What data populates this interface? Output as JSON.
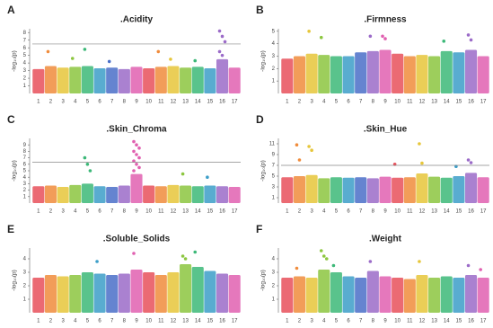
{
  "chromosome_colors": [
    "#e8505b",
    "#f08c3c",
    "#e6c63a",
    "#8cc63f",
    "#3cb878",
    "#3c9ec8",
    "#4a6fc8",
    "#9b6bc8",
    "#e060b0",
    "#e8505b",
    "#f08c3c",
    "#e6c63a",
    "#8cc63f",
    "#3cb878",
    "#3c9ec8",
    "#9b6bc8",
    "#e060b0"
  ],
  "chart_data": [
    {
      "type": "manhattan",
      "panel": "A",
      "title": ".Acidity",
      "ylabel": "-log₁₀(p)",
      "categories": [
        "1",
        "2",
        "3",
        "4",
        "5",
        "6",
        "7",
        "8",
        "9",
        "10",
        "11",
        "12",
        "13",
        "14",
        "15",
        "16",
        "17"
      ],
      "values": [
        3.2,
        3.6,
        3.4,
        3.5,
        3.6,
        3.3,
        3.4,
        3.2,
        3.5,
        3.3,
        3.5,
        3.6,
        3.4,
        3.5,
        3.3,
        4.5,
        3.4
      ],
      "peaks": [
        [],
        [
          5.5
        ],
        [],
        [
          4.6
        ],
        [
          5.8
        ],
        [],
        [
          4.2
        ],
        [],
        [],
        [],
        [
          5.5
        ],
        [
          4.5
        ],
        [],
        [
          4.3
        ],
        [],
        [
          8.2,
          7.5,
          6.8,
          5.5,
          5
        ],
        []
      ],
      "threshold": 6.5,
      "ylim": [
        0,
        8.5
      ],
      "yticks": [
        1,
        2,
        3,
        4,
        5,
        6,
        7,
        8
      ]
    },
    {
      "type": "manhattan",
      "panel": "B",
      "title": ".Firmness",
      "ylabel": "-log₁₀(p)",
      "categories": [
        "1",
        "2",
        "3",
        "4",
        "5",
        "6",
        "7",
        "8",
        "9",
        "10",
        "11",
        "12",
        "13",
        "14",
        "15",
        "16",
        "17"
      ],
      "values": [
        2.8,
        3.0,
        3.2,
        3.1,
        3.0,
        3.0,
        3.3,
        3.4,
        3.5,
        3.2,
        3.0,
        3.1,
        3.0,
        3.4,
        3.3,
        3.5,
        3.0
      ],
      "peaks": [
        [],
        [],
        [
          5
        ],
        [
          4.5
        ],
        [],
        [],
        [],
        [
          4.6
        ],
        [
          4.6,
          4.4
        ],
        [],
        [],
        [],
        [],
        [
          4.2
        ],
        [],
        [
          4.7,
          4.3
        ],
        []
      ],
      "ylim": [
        0,
        5.2
      ],
      "yticks": [
        1,
        2,
        3,
        4,
        5
      ]
    },
    {
      "type": "manhattan",
      "panel": "C",
      "title": ".Skin_Chroma",
      "ylabel": "-log₁₀(p)",
      "categories": [
        "1",
        "2",
        "3",
        "4",
        "5",
        "6",
        "7",
        "8",
        "9",
        "10",
        "11",
        "12",
        "13",
        "14",
        "15",
        "16",
        "17"
      ],
      "values": [
        2.6,
        2.7,
        2.5,
        2.8,
        3.0,
        2.6,
        2.5,
        2.7,
        4.5,
        2.7,
        2.6,
        2.8,
        2.7,
        2.6,
        2.7,
        2.6,
        2.5
      ],
      "peaks": [
        [],
        [],
        [],
        [],
        [
          7,
          6,
          5
        ],
        [],
        [],
        [],
        [
          9.5,
          9,
          8.5,
          8,
          7.5,
          7,
          6.5,
          6,
          5.5,
          5
        ],
        [],
        [],
        [],
        [
          4.5
        ],
        [],
        [
          4
        ],
        [],
        []
      ],
      "threshold": 6.3,
      "ylim": [
        0,
        10
      ],
      "yticks": [
        1,
        2,
        3,
        4,
        5,
        6,
        7,
        8,
        9
      ]
    },
    {
      "type": "manhattan",
      "panel": "D",
      "title": ".Skin_Hue",
      "ylabel": "-log₁₀(p)",
      "categories": [
        "1",
        "2",
        "3",
        "4",
        "5",
        "6",
        "7",
        "8",
        "9",
        "10",
        "11",
        "12",
        "13",
        "14",
        "15",
        "16",
        "17"
      ],
      "values": [
        4.8,
        5.0,
        5.2,
        4.6,
        4.8,
        4.7,
        4.8,
        4.6,
        4.9,
        4.7,
        4.8,
        5.5,
        4.9,
        4.7,
        5.0,
        5.6,
        4.8
      ],
      "peaks": [
        [],
        [
          10.8,
          8
        ],
        [
          10.5,
          9.8
        ],
        [],
        [],
        [],
        [],
        [],
        [],
        [
          7.2
        ],
        [],
        [
          11,
          7.4
        ],
        [],
        [],
        [
          6.8
        ],
        [
          8,
          7.5
        ],
        []
      ],
      "threshold": 7,
      "ylim": [
        0,
        12
      ],
      "yticks": [
        1,
        3,
        5,
        7,
        9,
        11
      ]
    },
    {
      "type": "manhattan",
      "panel": "E",
      "title": ".Soluble_Solids",
      "ylabel": "-log₁₀(p)",
      "categories": [
        "1",
        "2",
        "3",
        "4",
        "5",
        "6",
        "7",
        "8",
        "9",
        "10",
        "11",
        "12",
        "13",
        "14",
        "15",
        "16",
        "17"
      ],
      "values": [
        2.6,
        2.8,
        2.7,
        2.8,
        3.0,
        2.9,
        2.8,
        2.9,
        3.2,
        3.0,
        2.8,
        3.0,
        3.6,
        3.4,
        3.1,
        2.9,
        2.8
      ],
      "peaks": [
        [],
        [],
        [],
        [],
        [],
        [
          3.8
        ],
        [],
        [],
        [
          4.4
        ],
        [],
        [],
        [],
        [
          4.2,
          4
        ],
        [
          4.5
        ],
        [],
        [],
        []
      ],
      "ylim": [
        0,
        4.8
      ],
      "yticks": [
        1,
        2,
        3,
        4
      ]
    },
    {
      "type": "manhattan",
      "panel": "F",
      "title": ".Weight",
      "ylabel": "-log₁₀(p)",
      "categories": [
        "1",
        "2",
        "3",
        "4",
        "5",
        "6",
        "7",
        "8",
        "9",
        "10",
        "11",
        "12",
        "13",
        "14",
        "15",
        "16",
        "17"
      ],
      "values": [
        2.6,
        2.7,
        2.6,
        3.2,
        3.0,
        2.7,
        2.6,
        3.1,
        2.7,
        2.6,
        2.5,
        2.8,
        2.6,
        2.7,
        2.6,
        2.8,
        2.6
      ],
      "peaks": [
        [],
        [
          3.3
        ],
        [],
        [
          4.6,
          4.2,
          4
        ],
        [
          3.5
        ],
        [],
        [],
        [
          3.8
        ],
        [],
        [],
        [],
        [
          3.8
        ],
        [],
        [],
        [],
        [
          3.5
        ],
        [
          3.2
        ]
      ],
      "ylim": [
        0,
        4.8
      ],
      "yticks": [
        1,
        2,
        3,
        4
      ]
    }
  ]
}
